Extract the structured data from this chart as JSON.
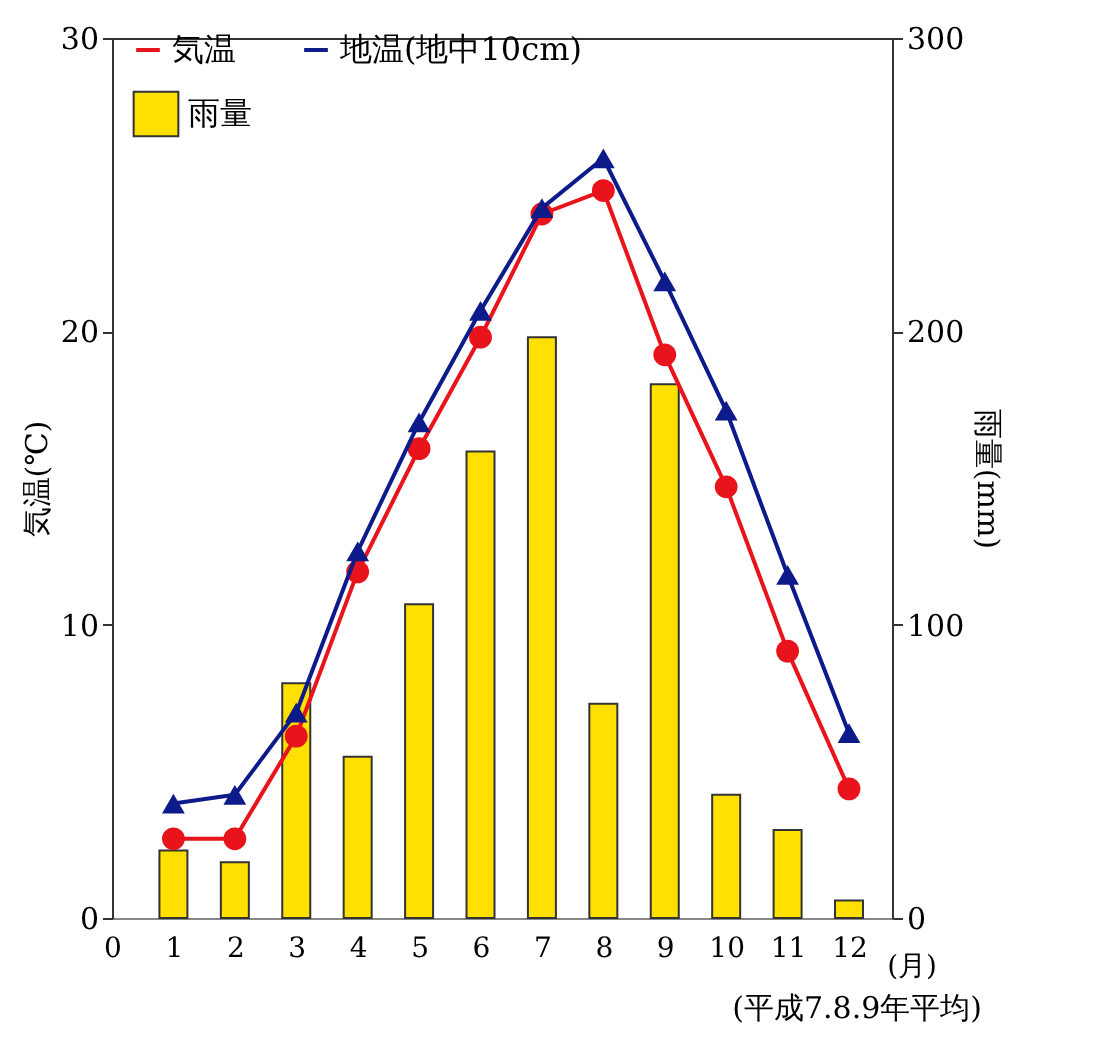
{
  "chart_data": {
    "type": "line",
    "x": [
      1,
      2,
      3,
      4,
      5,
      6,
      7,
      8,
      9,
      10,
      11,
      12
    ],
    "series": [
      {
        "name": "雨量",
        "type": "bar",
        "axis": "y2",
        "color": "#ffe000",
        "values": [
          23,
          19,
          80,
          55,
          107,
          159,
          198,
          73,
          182,
          42,
          30,
          6
        ]
      },
      {
        "name": "気温",
        "marker": "circle",
        "color": "#e8131b",
        "values": [
          2.7,
          2.7,
          6.2,
          11.8,
          16.0,
          19.8,
          24.0,
          24.8,
          19.2,
          14.7,
          9.1,
          4.4
        ]
      },
      {
        "name": "地温(地中10cm)",
        "marker": "triangle",
        "color": "#0d1a8a",
        "values": [
          3.9,
          4.2,
          7.0,
          12.5,
          16.9,
          20.7,
          24.2,
          25.9,
          21.7,
          17.3,
          11.7,
          6.3
        ]
      }
    ],
    "xlabel": "(月)",
    "ylabel": "気温(℃)",
    "y2label": "雨量(mm)",
    "xlim": [
      0,
      12.7
    ],
    "xticks": [
      0,
      1,
      2,
      3,
      4,
      5,
      6,
      7,
      8,
      9,
      10,
      11,
      12
    ],
    "ylim": [
      0,
      30
    ],
    "yticks": [
      0,
      10,
      20,
      30
    ],
    "y2lim": [
      0,
      300
    ],
    "y2ticks": [
      0,
      100,
      200,
      300
    ],
    "legend": "top left",
    "grid": false,
    "annotations": [
      "(平成7.8.9年平均)"
    ]
  }
}
